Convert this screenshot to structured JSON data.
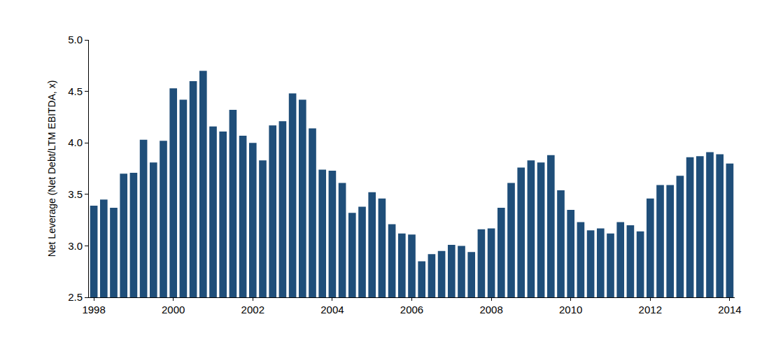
{
  "chart_data": {
    "type": "bar",
    "y_label": "Net Leverage (Net Debt/LTM EBITDA, x)",
    "categories": [
      "1998",
      null,
      null,
      null,
      null,
      null,
      null,
      null,
      "2000",
      null,
      null,
      null,
      null,
      null,
      null,
      null,
      "2002",
      null,
      null,
      null,
      null,
      null,
      null,
      null,
      "2004",
      null,
      null,
      null,
      null,
      null,
      null,
      null,
      "2006",
      null,
      null,
      null,
      null,
      null,
      null,
      null,
      "2008",
      null,
      null,
      null,
      null,
      null,
      null,
      null,
      "2010",
      null,
      null,
      null,
      null,
      null,
      null,
      null,
      "2012",
      null,
      null,
      null,
      null,
      null,
      null,
      null,
      "2014"
    ],
    "values": [
      3.39,
      3.45,
      3.37,
      3.7,
      3.71,
      4.03,
      3.81,
      4.02,
      4.53,
      4.42,
      4.6,
      4.7,
      4.16,
      4.11,
      4.32,
      4.07,
      4.0,
      3.83,
      4.17,
      4.21,
      4.48,
      4.42,
      4.14,
      3.74,
      3.73,
      3.61,
      3.32,
      3.38,
      3.52,
      3.46,
      3.21,
      3.12,
      3.11,
      2.85,
      2.92,
      2.95,
      3.01,
      3.0,
      2.94,
      3.16,
      3.17,
      3.37,
      3.61,
      3.76,
      3.83,
      3.81,
      3.88,
      3.54,
      3.35,
      3.23,
      3.15,
      3.17,
      3.12,
      3.23,
      3.2,
      3.14,
      3.46,
      3.59,
      3.59,
      3.68,
      3.86,
      3.87,
      3.91,
      3.89,
      3.8
    ],
    "color": "#1F4E79",
    "ylim": [
      2.5,
      5.0
    ],
    "yticks": [
      2.5,
      {
        "value": 3,
        "label": "3.0"
      },
      3.5,
      {
        "value": 4,
        "label": "4.0"
      },
      4.5,
      {
        "value": 5,
        "label": "5.0"
      }
    ],
    "grid": false
  }
}
